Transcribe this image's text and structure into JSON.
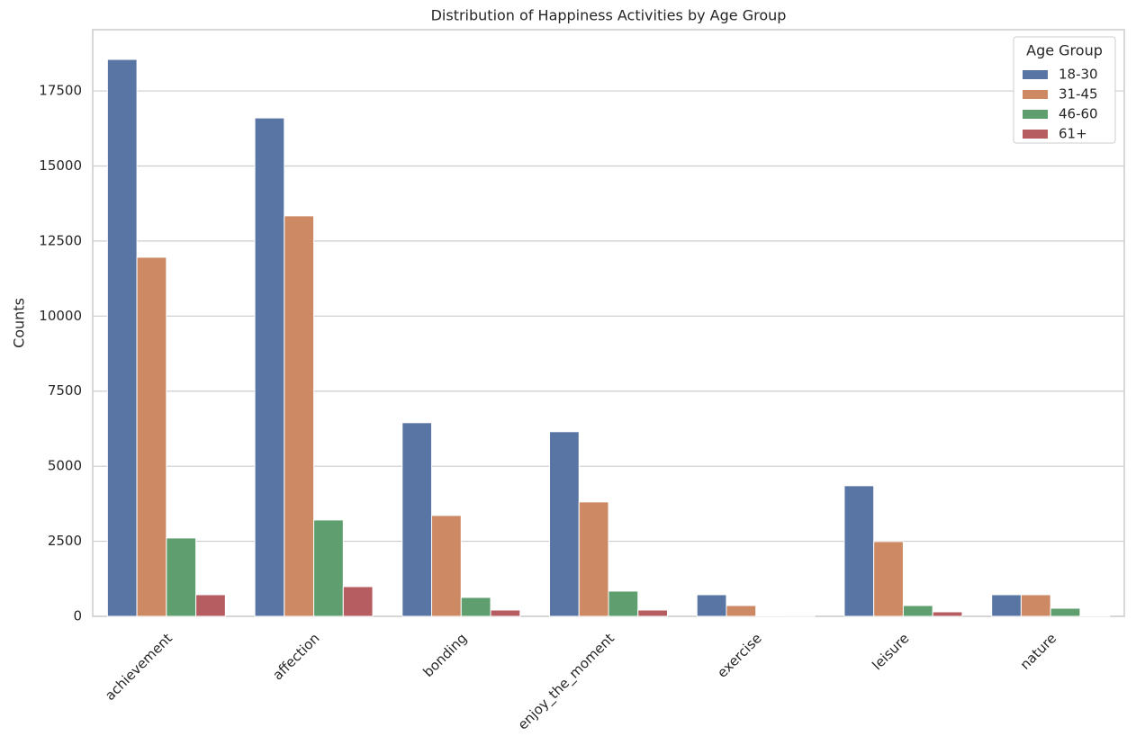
{
  "chart_data": {
    "type": "bar",
    "title": "Distribution of Happiness Activities by Age Group",
    "y_label": "Counts",
    "categories": [
      "achievement",
      "affection",
      "bonding",
      "enjoy_the_moment",
      "exercise",
      "leisure",
      "nature"
    ],
    "series": [
      {
        "name": "18-30",
        "color": "#5975a4",
        "values": [
          18550,
          16600,
          6450,
          6150,
          720,
          4350,
          720
        ]
      },
      {
        "name": "31-45",
        "color": "#cc8963",
        "values": [
          11960,
          13340,
          3360,
          3810,
          360,
          2490,
          720
        ]
      },
      {
        "name": "46-60",
        "color": "#5f9e6e",
        "values": [
          2610,
          3210,
          630,
          840,
          30,
          360,
          270
        ]
      },
      {
        "name": "61+",
        "color": "#b55d60",
        "values": [
          720,
          990,
          210,
          210,
          10,
          150,
          30
        ]
      }
    ],
    "legend_title": "Age Group",
    "legend": "upper right",
    "ylim": [
      0,
      19540
    ],
    "yticks": [
      0,
      2500,
      5000,
      7500,
      10000,
      12500,
      15000,
      17500
    ],
    "grid": true
  }
}
